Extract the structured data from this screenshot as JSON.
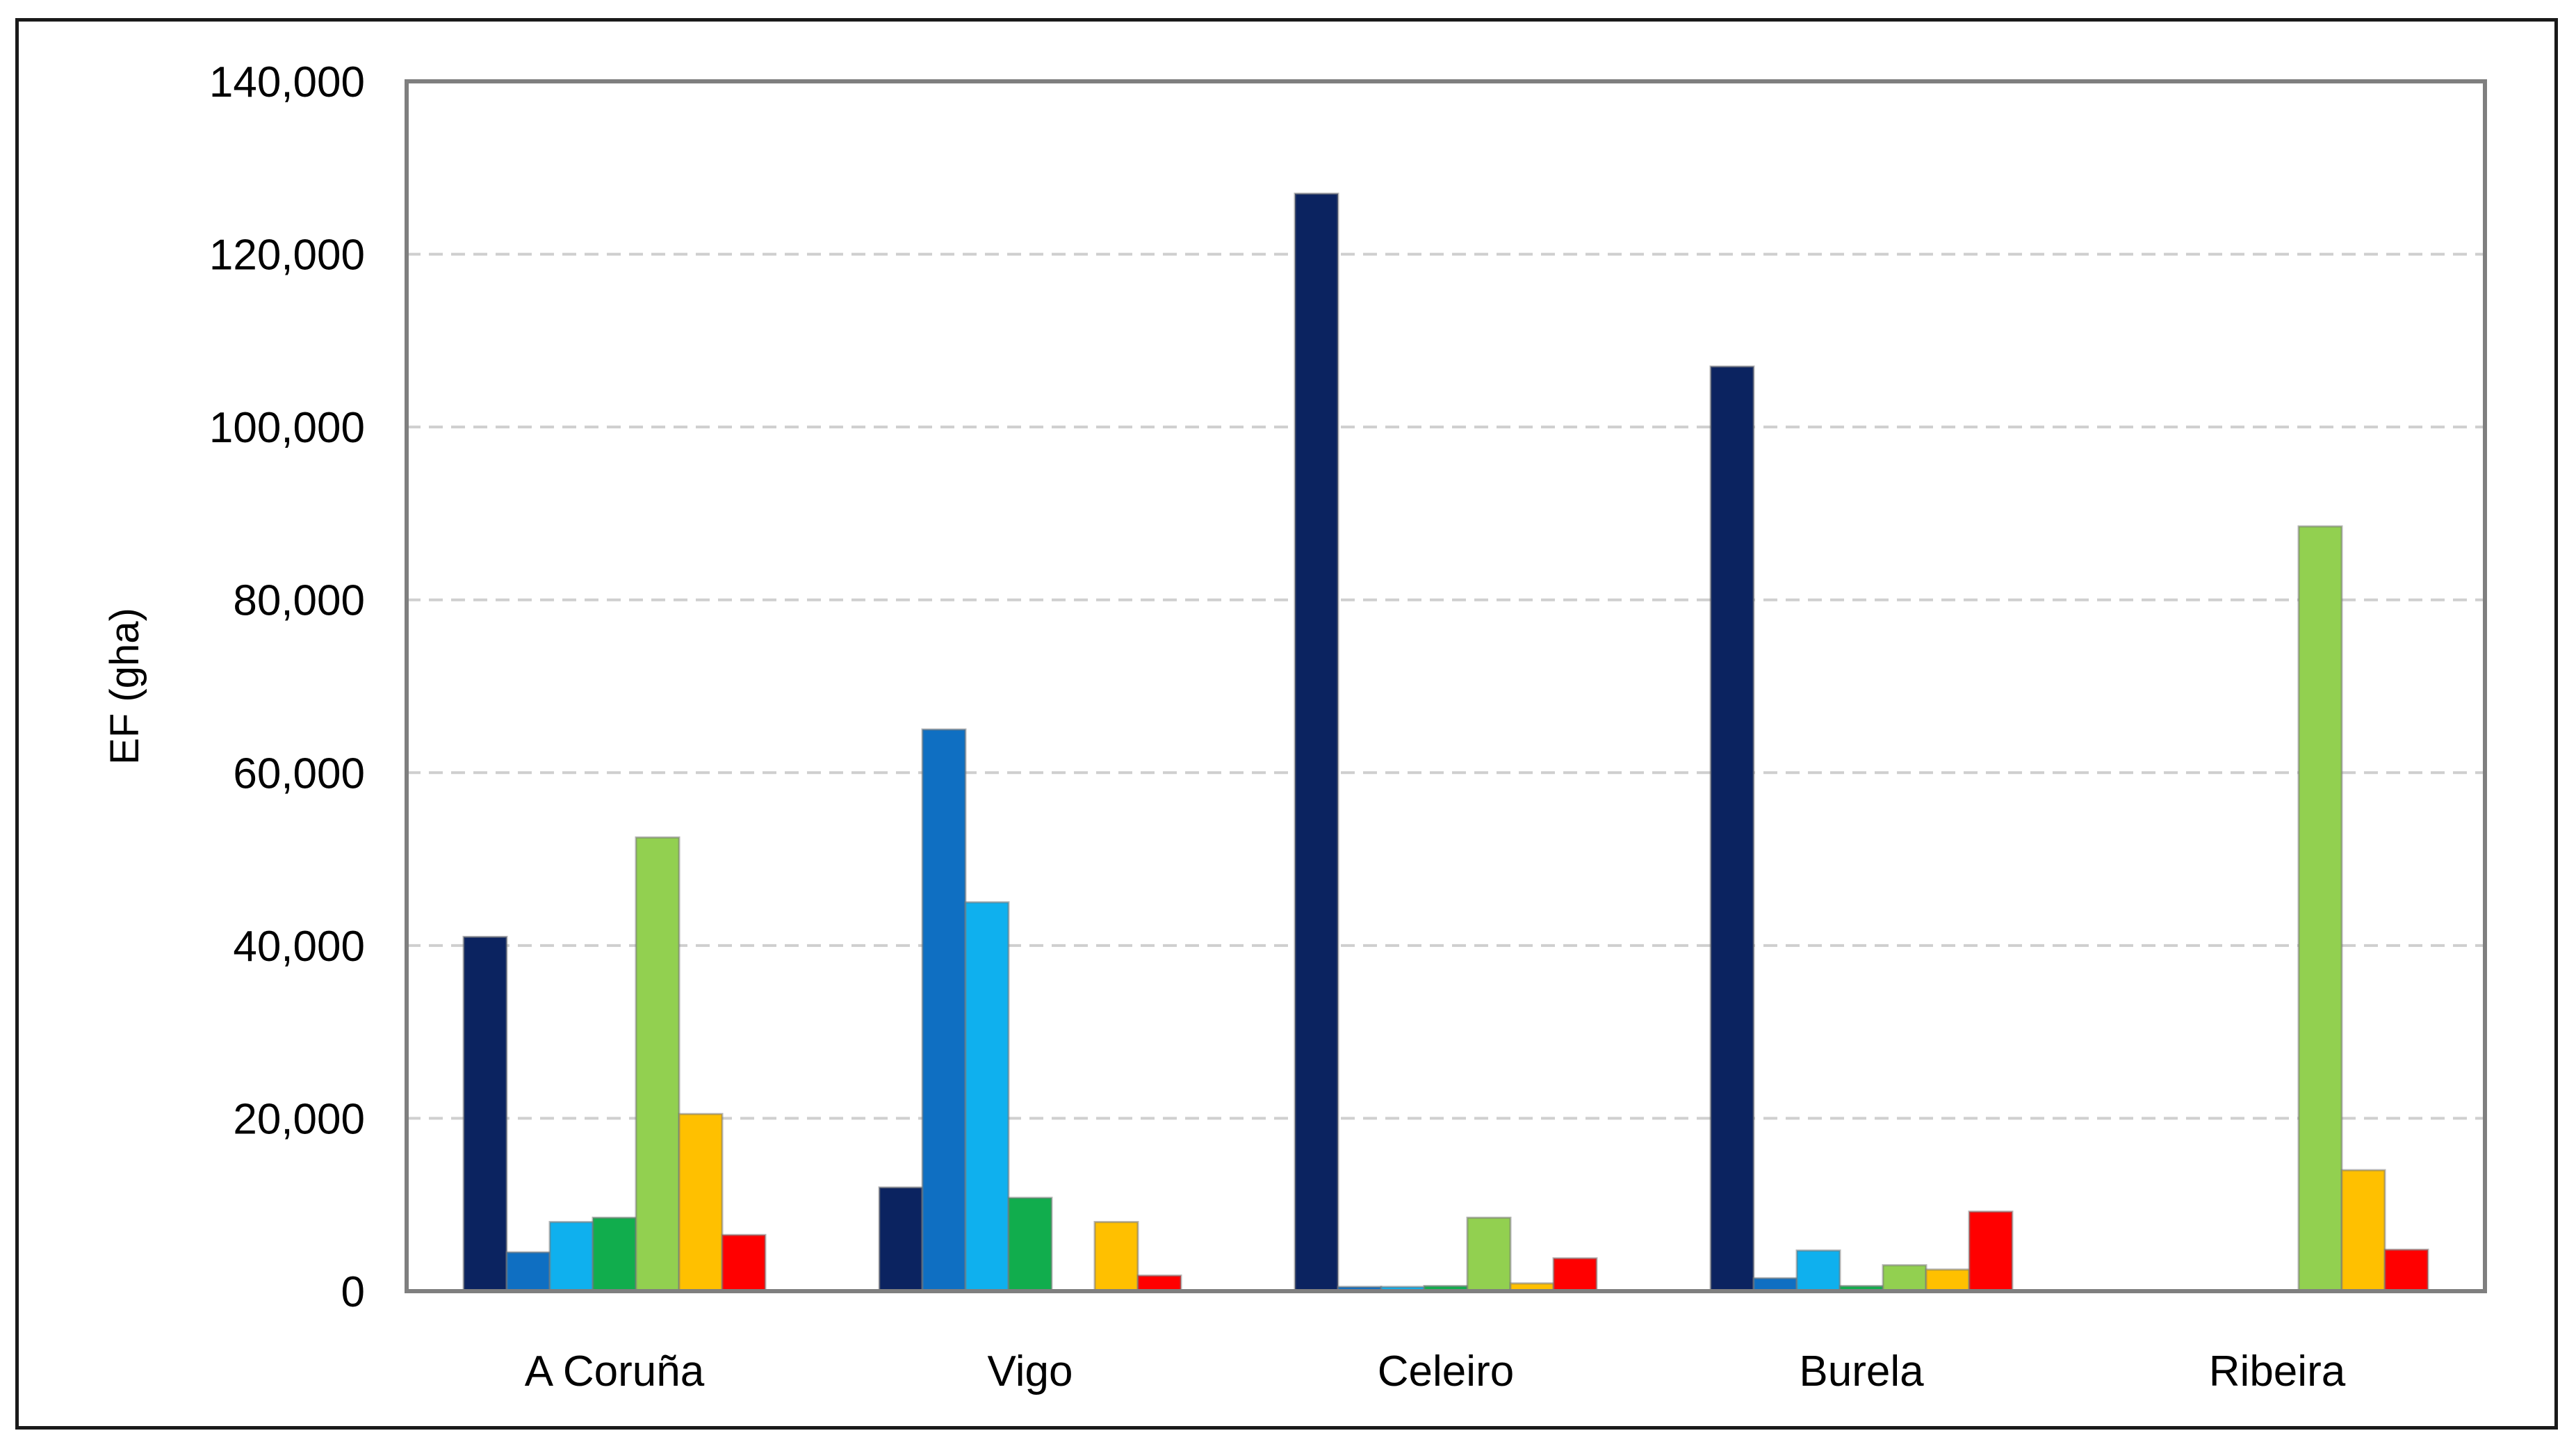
{
  "chart_data": {
    "type": "bar",
    "title": "",
    "xlabel": "",
    "ylabel": "EF (gha)",
    "ylim": [
      0,
      140000
    ],
    "y_ticks": [
      0,
      20000,
      40000,
      60000,
      80000,
      100000,
      120000,
      140000
    ],
    "y_tick_labels": [
      "0",
      "20,000",
      "40,000",
      "60,000",
      "80,000",
      "100,000",
      "120,000",
      "140,000"
    ],
    "grid": "horizontal dashed",
    "legend": "none",
    "categories": [
      "A Coruña",
      "Vigo",
      "Celeiro",
      "Burela",
      "Ribeira"
    ],
    "series": [
      {
        "color": "#0b2360",
        "values": [
          41000,
          12000,
          127000,
          107000,
          0
        ]
      },
      {
        "color": "#0f6fc2",
        "values": [
          4500,
          65000,
          500,
          1500,
          0
        ]
      },
      {
        "color": "#0fb0ee",
        "values": [
          8000,
          45000,
          500,
          4700,
          0
        ]
      },
      {
        "color": "#11ad4d",
        "values": [
          8500,
          10800,
          600,
          600,
          0
        ]
      },
      {
        "color": "#92d050",
        "values": [
          52500,
          0,
          8500,
          3000,
          88500
        ]
      },
      {
        "color": "#ffc000",
        "values": [
          20500,
          8000,
          900,
          2500,
          14000
        ]
      },
      {
        "color": "#ff0000",
        "values": [
          6500,
          1800,
          3800,
          9200,
          4800
        ]
      }
    ]
  }
}
